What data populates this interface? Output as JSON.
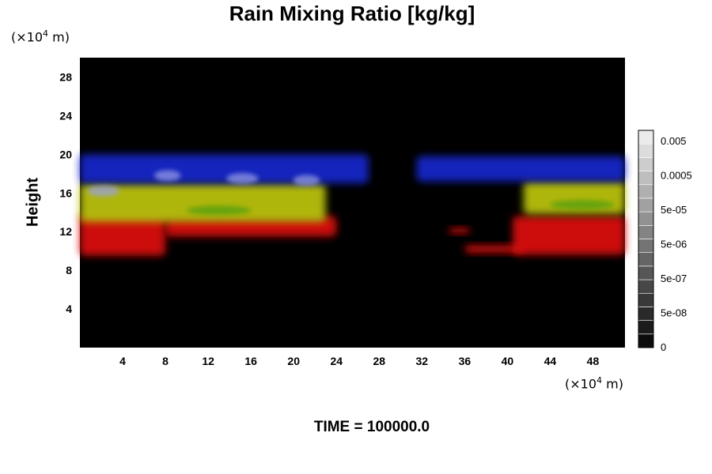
{
  "chart_data": {
    "type": "heatmap",
    "title": "Rain Mixing Ratio [kg/kg]",
    "ylabel": "Height",
    "xlabel": "",
    "x_unit_prefix": "(×10",
    "x_unit_exp": "4",
    "x_unit_suffix": " m)",
    "y_unit_prefix": "(×10",
    "y_unit_exp": "4",
    "y_unit_suffix": " m)",
    "xlim": [
      0,
      51
    ],
    "ylim": [
      0,
      30
    ],
    "x_ticks": [
      "4",
      "8",
      "12",
      "16",
      "20",
      "24",
      "28",
      "32",
      "36",
      "40",
      "44",
      "48"
    ],
    "x_tick_values": [
      4,
      8,
      12,
      16,
      20,
      24,
      28,
      32,
      36,
      40,
      44,
      48
    ],
    "y_ticks": [
      "4",
      "8",
      "12",
      "16",
      "20",
      "24",
      "28"
    ],
    "y_tick_values": [
      4,
      8,
      12,
      16,
      20,
      24,
      28
    ],
    "background_color": "#000000",
    "colorbar": {
      "labels": [
        "0",
        "5e-08",
        "5e-07",
        "5e-06",
        "5e-05",
        "0.0005",
        "0.005"
      ],
      "levels": 16
    },
    "layers": [
      {
        "color": "#d81010",
        "blobs": [
          {
            "x": [
              0,
              8.0
            ],
            "y": [
              9.5,
              13.8
            ]
          },
          {
            "x": [
              8.0,
              24.0
            ],
            "y": [
              11.5,
              13.6
            ]
          },
          {
            "x": [
              34.5,
              36.5
            ],
            "y": [
              11.8,
              12.4
            ]
          },
          {
            "x": [
              36.0,
              41.5
            ],
            "y": [
              9.8,
              10.6
            ]
          },
          {
            "x": [
              40.5,
              51
            ],
            "y": [
              9.6,
              13.6
            ]
          }
        ]
      },
      {
        "color": "#b8c010",
        "blobs": [
          {
            "x": [
              0,
              23.0
            ],
            "y": [
              13.0,
              17.0
            ]
          },
          {
            "x": [
              41.5,
              51
            ],
            "y": [
              13.8,
              17.2
            ]
          }
        ]
      },
      {
        "color": "#1828c8",
        "blobs": [
          {
            "x": [
              0,
              27.0
            ],
            "y": [
              17.0,
              20.0
            ]
          },
          {
            "x": [
              31.5,
              51
            ],
            "y": [
              17.2,
              19.8
            ]
          }
        ]
      }
    ]
  },
  "time_label": "TIME = 100000.0"
}
